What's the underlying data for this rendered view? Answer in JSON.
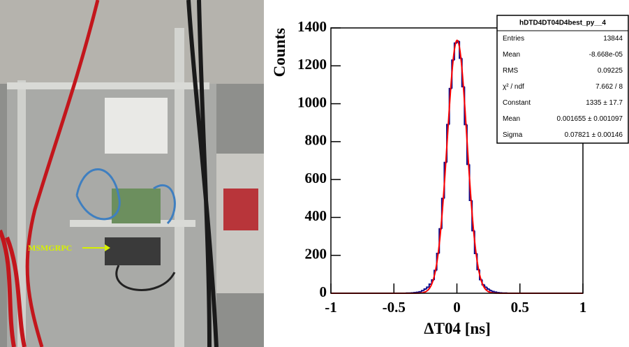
{
  "photo": {
    "label": "MSMGRPC"
  },
  "chart_data": {
    "type": "histogram",
    "x_label": "ΔT04 [ns]",
    "y_label": "Counts",
    "bins": [
      -1,
      -0.98,
      -0.96,
      -0.94,
      -0.92,
      -0.9,
      -0.88,
      -0.86,
      -0.84,
      -0.82,
      -0.8,
      -0.78,
      -0.76,
      -0.74,
      -0.72,
      -0.7,
      -0.68,
      -0.66,
      -0.64,
      -0.62,
      -0.6,
      -0.58,
      -0.56,
      -0.54,
      -0.52,
      -0.5,
      -0.48,
      -0.46,
      -0.44,
      -0.42,
      -0.4,
      -0.38,
      -0.36,
      -0.34,
      -0.32,
      -0.3,
      -0.28,
      -0.26,
      -0.24,
      -0.22,
      -0.2,
      -0.18,
      -0.16,
      -0.14,
      -0.12,
      -0.1,
      -0.08,
      -0.06,
      -0.04,
      -0.02,
      0,
      0.02,
      0.04,
      0.06,
      0.08,
      0.1,
      0.12,
      0.14,
      0.16,
      0.18,
      0.2,
      0.22,
      0.24,
      0.26,
      0.28,
      0.3,
      0.32,
      0.34,
      0.36,
      0.38,
      0.4,
      0.42,
      0.44,
      0.46,
      0.48,
      0.5,
      0.52,
      0.54,
      0.56,
      0.58,
      0.6,
      0.62,
      0.64,
      0.66,
      0.68,
      0.7,
      0.72,
      0.74,
      0.76,
      0.78,
      0.8,
      0.82,
      0.84,
      0.86,
      0.88,
      0.9,
      0.92,
      0.94,
      0.96,
      0.98,
      1
    ],
    "values": [
      0,
      0,
      0,
      0,
      0,
      0,
      0,
      0,
      0,
      0,
      0,
      0,
      0,
      0,
      0,
      0,
      0,
      0,
      0,
      0,
      0,
      0,
      0,
      0,
      0,
      0,
      0,
      0,
      0,
      0,
      1,
      1,
      2,
      3,
      5,
      8,
      14,
      22,
      32,
      48,
      70,
      120,
      210,
      340,
      500,
      690,
      890,
      1080,
      1230,
      1320,
      1330,
      1240,
      1090,
      890,
      680,
      490,
      330,
      210,
      125,
      72,
      45,
      32,
      22,
      14,
      9,
      6,
      3,
      2,
      1,
      1,
      0,
      0,
      0,
      0,
      0,
      0,
      0,
      0,
      0,
      0,
      0,
      0,
      0,
      0,
      0,
      0,
      0,
      0,
      0,
      0,
      0,
      0,
      0,
      0,
      0,
      0,
      0,
      0,
      0,
      0
    ],
    "color": "#0a0a8a",
    "fit": {
      "constant": 1335,
      "mean": 0.001655,
      "sigma": 0.07821,
      "color": "#ff0000"
    },
    "xlim": [
      -1,
      1
    ],
    "xticks": [
      -1,
      -0.5,
      0,
      0.5,
      1
    ],
    "ylim": [
      0,
      1400
    ],
    "yticks": [
      0,
      200,
      400,
      600,
      800,
      1000,
      1200,
      1400
    ],
    "stats": {
      "title": "hDTD4DT04D4best_py__4",
      "rows": [
        [
          "Entries",
          "13844"
        ],
        [
          "Mean",
          "-8.668e-05"
        ],
        [
          "RMS",
          "0.09225"
        ],
        [
          "χ² / ndf",
          "7.662 / 8"
        ],
        [
          "Constant",
          "1335 ± 17.7"
        ],
        [
          "Mean",
          "0.001655 ± 0.001097"
        ],
        [
          "Sigma",
          "0.07821 ± 0.00146"
        ]
      ]
    }
  }
}
